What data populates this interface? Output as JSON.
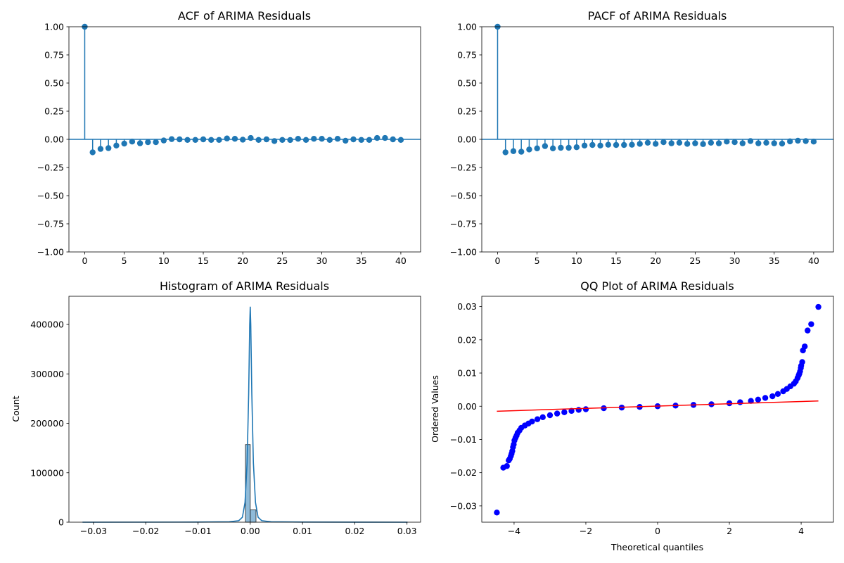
{
  "colors": {
    "stem": "#1f77b4",
    "qq_points": "#0000ff",
    "qq_line": "#ff0000",
    "hist_bar": "#1f77b4"
  },
  "chart_data": [
    {
      "type": "stem",
      "title": "ACF of ARIMA Residuals",
      "xlabel": "",
      "ylabel": "",
      "xlim": [
        -2,
        42.5
      ],
      "ylim": [
        -1.0,
        1.0
      ],
      "xticks": [
        0,
        5,
        10,
        15,
        20,
        25,
        30,
        35,
        40
      ],
      "yticks": [
        -1.0,
        -0.75,
        -0.5,
        -0.25,
        0.0,
        0.25,
        0.5,
        0.75,
        1.0
      ],
      "x": [
        0,
        1,
        2,
        3,
        4,
        5,
        6,
        7,
        8,
        9,
        10,
        11,
        12,
        13,
        14,
        15,
        16,
        17,
        18,
        19,
        20,
        21,
        22,
        23,
        24,
        25,
        26,
        27,
        28,
        29,
        30,
        31,
        32,
        33,
        34,
        35,
        36,
        37,
        38,
        39,
        40
      ],
      "values": [
        1.0,
        -0.115,
        -0.085,
        -0.078,
        -0.055,
        -0.038,
        -0.02,
        -0.035,
        -0.025,
        -0.025,
        -0.01,
        0.002,
        0.0,
        -0.005,
        -0.005,
        0.0,
        -0.005,
        -0.005,
        0.008,
        0.005,
        -0.003,
        0.012,
        -0.005,
        0.0,
        -0.015,
        -0.005,
        -0.006,
        0.005,
        -0.005,
        0.005,
        0.005,
        -0.005,
        0.005,
        -0.012,
        0.0,
        -0.005,
        -0.005,
        0.012,
        0.012,
        0.0,
        -0.005
      ],
      "grid": false
    },
    {
      "type": "stem",
      "title": "PACF of ARIMA Residuals",
      "xlabel": "",
      "ylabel": "",
      "xlim": [
        -2,
        42.5
      ],
      "ylim": [
        -1.0,
        1.0
      ],
      "xticks": [
        0,
        5,
        10,
        15,
        20,
        25,
        30,
        35,
        40
      ],
      "yticks": [
        -1.0,
        -0.75,
        -0.5,
        -0.25,
        0.0,
        0.25,
        0.5,
        0.75,
        1.0
      ],
      "x": [
        0,
        1,
        2,
        3,
        4,
        5,
        6,
        7,
        8,
        9,
        10,
        11,
        12,
        13,
        14,
        15,
        16,
        17,
        18,
        19,
        20,
        21,
        22,
        23,
        24,
        25,
        26,
        27,
        28,
        29,
        30,
        31,
        32,
        33,
        34,
        35,
        36,
        37,
        38,
        39,
        40
      ],
      "values": [
        1.0,
        -0.115,
        -0.105,
        -0.11,
        -0.09,
        -0.08,
        -0.06,
        -0.08,
        -0.075,
        -0.075,
        -0.07,
        -0.055,
        -0.05,
        -0.055,
        -0.048,
        -0.05,
        -0.05,
        -0.048,
        -0.04,
        -0.03,
        -0.04,
        -0.025,
        -0.035,
        -0.03,
        -0.04,
        -0.035,
        -0.042,
        -0.03,
        -0.035,
        -0.02,
        -0.025,
        -0.035,
        -0.015,
        -0.035,
        -0.03,
        -0.035,
        -0.038,
        -0.018,
        -0.012,
        -0.015,
        -0.02
      ],
      "grid": false
    },
    {
      "type": "histogram",
      "title": "Histogram of ARIMA Residuals",
      "xlabel": "",
      "ylabel": "Count",
      "xlim": [
        -0.0347,
        0.0326
      ],
      "ylim": [
        0,
        457000
      ],
      "xticks": [
        -0.03,
        -0.02,
        -0.01,
        0.0,
        0.01,
        0.02,
        0.03
      ],
      "xtick_labels": [
        "−0.03",
        "−0.02",
        "−0.01",
        "0.00",
        "0.01",
        "0.02",
        "0.03"
      ],
      "yticks": [
        0,
        100000,
        200000,
        300000,
        400000
      ],
      "bins": [
        {
          "x0": -0.00092,
          "x1": 0.0,
          "count": 157000
        },
        {
          "x0": 0.0,
          "x1": 0.0011,
          "count": 25000
        }
      ],
      "kde": {
        "x": [
          -0.0321,
          -0.01,
          -0.004,
          -0.0022,
          -0.0015,
          -0.001,
          -0.0006,
          -0.0003,
          -0.0001,
          0.0,
          0.0001,
          0.0003,
          0.0006,
          0.001,
          0.0015,
          0.0022,
          0.004,
          0.01,
          0.0301
        ],
        "y": [
          0,
          200,
          800,
          3000,
          10000,
          40000,
          120000,
          260000,
          400000,
          436000,
          400000,
          260000,
          120000,
          40000,
          10000,
          3000,
          800,
          200,
          0
        ]
      },
      "grid": false
    },
    {
      "type": "scatter",
      "title": "QQ Plot of ARIMA Residuals",
      "xlabel": "Theoretical quantiles",
      "ylabel": "Ordered Values",
      "xlim": [
        -4.9,
        4.9
      ],
      "ylim": [
        -0.0349,
        0.0331
      ],
      "xticks": [
        -4,
        -2,
        0,
        2,
        4
      ],
      "xtick_labels": [
        "−4",
        "−2",
        "0",
        "2",
        "4"
      ],
      "yticks": [
        -0.03,
        -0.02,
        -0.01,
        0.0,
        0.01,
        0.02,
        0.03
      ],
      "ytick_labels": [
        "−0.03",
        "−0.02",
        "−0.01",
        "0.00",
        "0.01",
        "0.02",
        "0.03"
      ],
      "points": {
        "x": [
          -4.48,
          -4.3,
          -4.2,
          -4.15,
          -4.12,
          -4.09,
          -4.07,
          -4.05,
          -4.03,
          -4.01,
          -3.99,
          -3.96,
          -3.93,
          -3.9,
          -3.85,
          -3.8,
          -3.7,
          -3.6,
          -3.5,
          -3.35,
          -3.2,
          -3.0,
          -2.8,
          -2.6,
          -2.4,
          -2.2,
          -2.0,
          -1.5,
          -1.0,
          -0.5,
          0.0,
          0.5,
          1.0,
          1.5,
          2.0,
          2.3,
          2.6,
          2.8,
          3.0,
          3.2,
          3.35,
          3.5,
          3.6,
          3.7,
          3.8,
          3.85,
          3.9,
          3.93,
          3.95,
          3.97,
          3.99,
          4.0,
          4.03,
          4.05,
          4.1,
          4.18,
          4.28,
          4.48
        ],
        "y": [
          -0.032,
          -0.0185,
          -0.018,
          -0.0163,
          -0.0158,
          -0.015,
          -0.0143,
          -0.0135,
          -0.0123,
          -0.0115,
          -0.0103,
          -0.0095,
          -0.0088,
          -0.008,
          -0.0073,
          -0.0065,
          -0.0058,
          -0.0052,
          -0.0046,
          -0.0039,
          -0.0033,
          -0.0027,
          -0.0022,
          -0.0018,
          -0.0014,
          -0.0011,
          -0.0009,
          -0.0006,
          -0.0004,
          -0.0002,
          0.0,
          0.0002,
          0.0004,
          0.0006,
          0.0009,
          0.0012,
          0.0016,
          0.002,
          0.0025,
          0.003,
          0.0037,
          0.0045,
          0.0052,
          0.006,
          0.0068,
          0.0075,
          0.0085,
          0.0093,
          0.0098,
          0.0105,
          0.0115,
          0.0122,
          0.0133,
          0.0168,
          0.018,
          0.0228,
          0.0247,
          0.0299
        ]
      },
      "fit_line": {
        "x": [
          -4.48,
          4.48
        ],
        "y": [
          -0.0015,
          0.0016
        ]
      },
      "grid": false
    }
  ]
}
